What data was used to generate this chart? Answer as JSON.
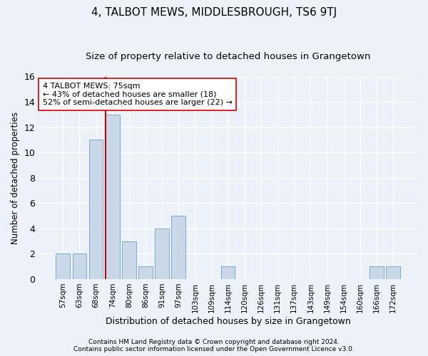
{
  "title": "4, TALBOT MEWS, MIDDLESBROUGH, TS6 9TJ",
  "subtitle": "Size of property relative to detached houses in Grangetown",
  "xlabel": "Distribution of detached houses by size in Grangetown",
  "ylabel": "Number of detached properties",
  "bar_labels": [
    "57sqm",
    "63sqm",
    "68sqm",
    "74sqm",
    "80sqm",
    "86sqm",
    "91sqm",
    "97sqm",
    "103sqm",
    "109sqm",
    "114sqm",
    "120sqm",
    "126sqm",
    "131sqm",
    "137sqm",
    "143sqm",
    "149sqm",
    "154sqm",
    "160sqm",
    "166sqm",
    "172sqm"
  ],
  "bar_values": [
    2,
    2,
    11,
    13,
    3,
    1,
    4,
    5,
    0,
    0,
    1,
    0,
    0,
    0,
    0,
    0,
    0,
    0,
    0,
    1,
    1
  ],
  "bar_color": "#c9d9ea",
  "bar_edge_color": "#7baac8",
  "vline_index": 3,
  "vline_color": "#cc0000",
  "annotation_line1": "4 TALBOT MEWS: 75sqm",
  "annotation_line2": "← 43% of detached houses are smaller (18)",
  "annotation_line3": "52% of semi-detached houses are larger (22) →",
  "annotation_box_color": "#ffffff",
  "annotation_box_edge": "#cc0000",
  "ylim": [
    0,
    16
  ],
  "yticks": [
    0,
    2,
    4,
    6,
    8,
    10,
    12,
    14,
    16
  ],
  "footer1": "Contains HM Land Registry data © Crown copyright and database right 2024.",
  "footer2": "Contains public sector information licensed under the Open Government Licence v3.0.",
  "bg_color": "#edf2f8",
  "grid_color": "#ffffff",
  "title_fontsize": 11,
  "subtitle_fontsize": 9.5
}
